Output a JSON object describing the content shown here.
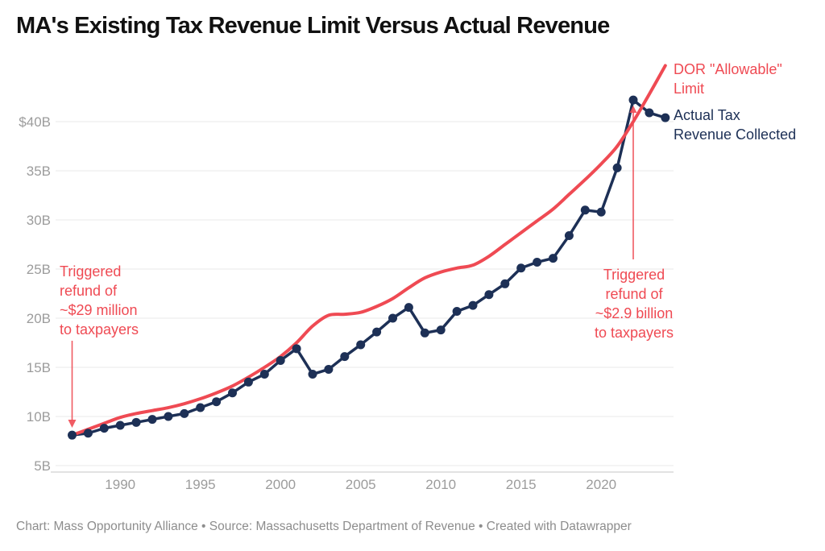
{
  "title": "MA's Existing Tax Revenue Limit Versus Actual Revenue",
  "footer": "Chart: Mass Opportunity Alliance • Source: Massachusetts Department of Revenue • Created with Datawrapper",
  "colors": {
    "limit_red": "#ef4a53",
    "actual_navy": "#1d3056",
    "grid": "#e8e8e8",
    "axis_line": "#c6c6c6",
    "tick_text": "#9c9c9c",
    "footer_text": "#8d8d8d",
    "title_text": "#111111"
  },
  "legend": {
    "limit_label": "DOR \"Allowable\"\nLimit",
    "actual_label": "Actual Tax\nRevenue Collected"
  },
  "annotations": {
    "refund_1987": "Triggered\nrefund of\n~$29 million\nto taxpayers",
    "refund_2022": "Triggered\nrefund of\n~$2.9 billion\nto taxpayers"
  },
  "chart_data": {
    "type": "line",
    "units": "billions USD",
    "x": [
      1987,
      1988,
      1989,
      1990,
      1991,
      1992,
      1993,
      1994,
      1995,
      1996,
      1997,
      1998,
      1999,
      2000,
      2001,
      2002,
      2003,
      2004,
      2005,
      2006,
      2007,
      2008,
      2009,
      2010,
      2011,
      2012,
      2013,
      2014,
      2015,
      2016,
      2017,
      2018,
      2019,
      2020,
      2021,
      2022,
      2023,
      2024
    ],
    "series": [
      {
        "name": "DOR \"Allowable\" Limit",
        "color": "#ef4a53",
        "style": "smooth",
        "markers": false,
        "values": [
          8.1,
          8.7,
          9.3,
          9.9,
          10.3,
          10.6,
          10.9,
          11.3,
          11.8,
          12.4,
          13.1,
          14.0,
          15.0,
          16.1,
          17.5,
          19.2,
          20.3,
          20.4,
          20.6,
          21.2,
          22.0,
          23.1,
          24.1,
          24.7,
          25.1,
          25.4,
          26.3,
          27.5,
          28.7,
          29.9,
          31.1,
          32.6,
          34.1,
          35.7,
          37.5,
          40.0,
          42.8,
          45.7
        ]
      },
      {
        "name": "Actual Tax Revenue Collected",
        "color": "#1d3056",
        "style": "straight",
        "markers": true,
        "values": [
          8.1,
          8.3,
          8.8,
          9.1,
          9.4,
          9.7,
          10.0,
          10.3,
          10.9,
          11.5,
          12.4,
          13.5,
          14.3,
          15.7,
          16.9,
          14.3,
          14.8,
          16.1,
          17.3,
          18.6,
          20.0,
          21.1,
          18.5,
          18.8,
          20.7,
          21.3,
          22.4,
          23.5,
          25.1,
          25.7,
          26.1,
          28.4,
          31.0,
          30.8,
          35.3,
          42.2,
          40.9,
          40.4
        ]
      }
    ],
    "x_ticks": [
      1990,
      1995,
      2000,
      2005,
      2010,
      2015,
      2020
    ],
    "y_ticks": [
      {
        "value": 5,
        "label": "5B"
      },
      {
        "value": 10,
        "label": "10B"
      },
      {
        "value": 15,
        "label": "15B"
      },
      {
        "value": 20,
        "label": "20B"
      },
      {
        "value": 25,
        "label": "25B"
      },
      {
        "value": 30,
        "label": "30B"
      },
      {
        "value": 35,
        "label": "35B"
      },
      {
        "value": 40,
        "label": "$40B"
      }
    ],
    "xlim": [
      1985.6,
      2024.5
    ],
    "ylim": [
      4.3,
      45.8
    ],
    "grid": true,
    "legend_position": "right-of-last-point",
    "annotation_targets": {
      "refund_1987_year": 1987,
      "refund_2022_year": 2022
    }
  }
}
